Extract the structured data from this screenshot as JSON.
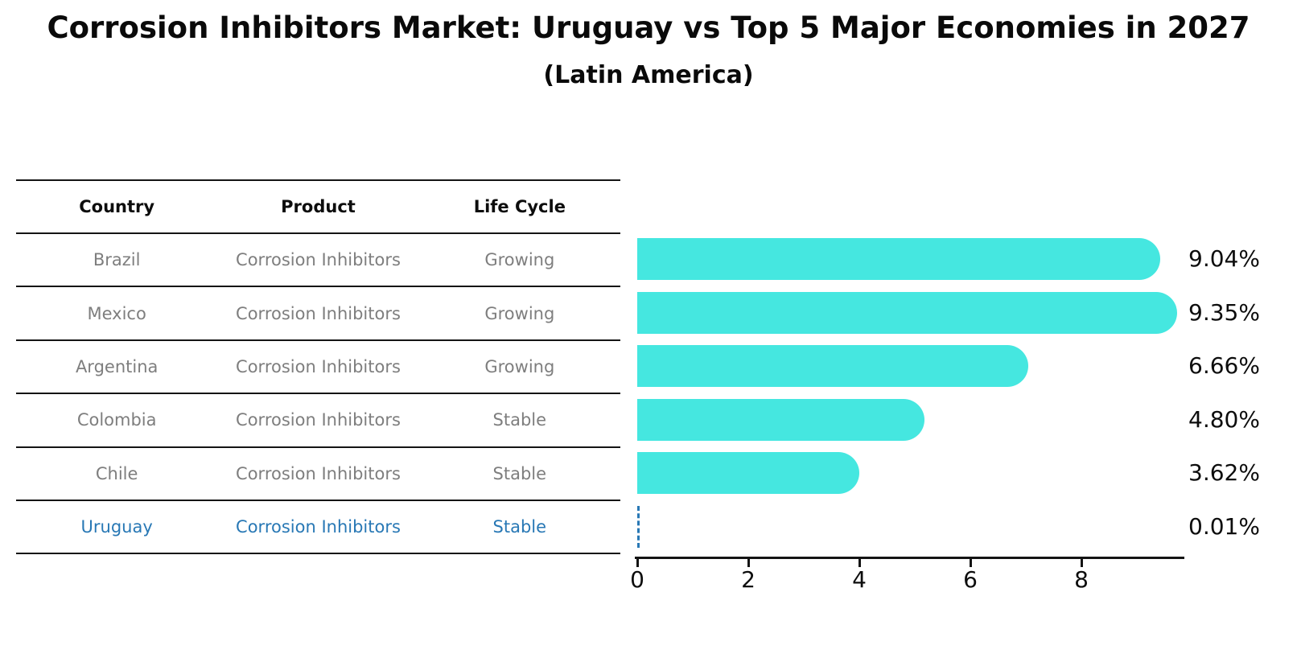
{
  "title": "Corrosion Inhibitors Market: Uruguay vs Top 5 Major Economies in 2027",
  "subtitle": "(Latin America)",
  "table": {
    "columns": [
      "Country",
      "Product",
      "Life Cycle"
    ],
    "rows": [
      {
        "country": "Brazil",
        "product": "Corrosion Inhibitors",
        "life_cycle": "Growing",
        "highlighted": false
      },
      {
        "country": "Mexico",
        "product": "Corrosion Inhibitors",
        "life_cycle": "Growing",
        "highlighted": false
      },
      {
        "country": "Argentina",
        "product": "Corrosion Inhibitors",
        "life_cycle": "Growing",
        "highlighted": false
      },
      {
        "country": "Colombia",
        "product": "Corrosion Inhibitors",
        "life_cycle": "Stable",
        "highlighted": false
      },
      {
        "country": "Chile",
        "product": "Corrosion Inhibitors",
        "life_cycle": "Stable",
        "highlighted": false
      },
      {
        "country": "Uruguay",
        "product": "Corrosion Inhibitors",
        "life_cycle": "Stable",
        "highlighted": true
      }
    ]
  },
  "chart_data": {
    "type": "bar",
    "orientation": "horizontal",
    "title": "Corrosion Inhibitors Market: Uruguay vs Top 5 Major Economies in 2027",
    "subtitle": "(Latin America)",
    "categories": [
      "Brazil",
      "Mexico",
      "Argentina",
      "Colombia",
      "Chile",
      "Uruguay"
    ],
    "values": [
      9.04,
      9.35,
      6.66,
      4.8,
      3.62,
      0.01
    ],
    "value_labels": [
      "9.04%",
      "9.35%",
      "6.66%",
      "4.80%",
      "3.62%",
      "0.01%"
    ],
    "x_ticks": [
      0,
      2,
      4,
      6,
      8
    ],
    "xlim": [
      0,
      9.83
    ],
    "grid": false,
    "legend": false,
    "bar_color": "#45E7E0",
    "highlight_color": "#2878B5",
    "highlight_bar_style": "dashed-outline-at-zero"
  },
  "colors": {
    "bar": "#45E7E0",
    "highlight_text": "#2878B5",
    "table_text": "#7E7E7E",
    "heading_text": "#0A0A0A",
    "axis": "#141414"
  }
}
